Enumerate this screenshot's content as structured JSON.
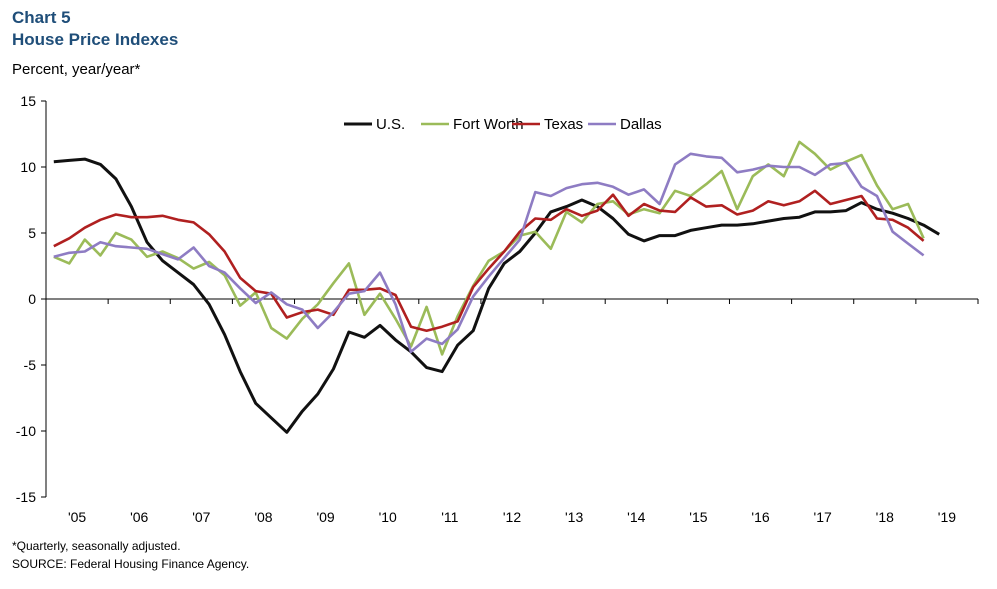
{
  "header": {
    "chart_number": "Chart 5",
    "title": "House Price Indexes",
    "y_unit": "Percent, year/year*"
  },
  "footer": {
    "note": "*Quarterly, seasonally adjusted.",
    "source": "SOURCE: Federal Housing Finance Agency."
  },
  "colors": {
    "title": "#1f4e79",
    "us": "#111111",
    "fort_worth": "#9bbb59",
    "texas": "#b02020",
    "dallas": "#8e7cc3"
  },
  "chart_data": {
    "type": "line",
    "title": "House Price Indexes",
    "ylabel": "Percent, year/year*",
    "xlabel": "",
    "ylim": [
      -15,
      15
    ],
    "yticks": [
      15,
      10,
      5,
      0,
      -5,
      -10,
      -15
    ],
    "year_labels": [
      "'05",
      "'06",
      "'07",
      "'08",
      "'09",
      "'10",
      "'11",
      "'12",
      "'13",
      "'14",
      "'15",
      "'16",
      "'17",
      "'18",
      "'19"
    ],
    "x_start": 2005.0,
    "x_step": 0.25,
    "grid": false,
    "legend_position": "top-center",
    "series": [
      {
        "name": "U.S.",
        "key": "us",
        "values": [
          10.4,
          10.5,
          10.6,
          10.2,
          9.1,
          7.0,
          4.3,
          2.9,
          2.0,
          1.1,
          -0.4,
          -2.7,
          -5.5,
          -7.9,
          -9.0,
          -10.1,
          -8.5,
          -7.2,
          -5.3,
          -2.5,
          -2.9,
          -2.0,
          -3.1,
          -4.0,
          -5.2,
          -5.5,
          -3.5,
          -2.4,
          0.8,
          2.7,
          3.6,
          5.0,
          6.6,
          7.0,
          7.5,
          7.0,
          6.1,
          4.9,
          4.4,
          4.8,
          4.8,
          5.2,
          5.4,
          5.6,
          5.6,
          5.7,
          5.9,
          6.1,
          6.2,
          6.6,
          6.6,
          6.7,
          7.3,
          6.8,
          6.5,
          6.1,
          5.6,
          4.9
        ]
      },
      {
        "name": "Fort Worth",
        "key": "fort_worth",
        "values": [
          3.2,
          2.7,
          4.5,
          3.3,
          5.0,
          4.5,
          3.2,
          3.6,
          3.1,
          2.3,
          2.8,
          1.8,
          -0.5,
          0.5,
          -2.2,
          -3.0,
          -1.5,
          -0.4,
          1.2,
          2.7,
          -1.2,
          0.4,
          -1.5,
          -3.6,
          -0.6,
          -4.2,
          -1.3,
          1.0,
          2.9,
          3.6,
          4.8,
          5.1,
          3.8,
          6.6,
          5.8,
          7.2,
          7.4,
          6.4,
          6.8,
          6.5,
          8.2,
          7.8,
          8.7,
          9.7,
          6.8,
          9.3,
          10.2,
          9.3,
          11.9,
          11.0,
          9.8,
          10.4,
          10.9,
          8.6,
          6.8,
          7.2,
          4.6
        ]
      },
      {
        "name": "Texas",
        "key": "texas",
        "values": [
          4.0,
          4.6,
          5.4,
          6.0,
          6.4,
          6.2,
          6.2,
          6.3,
          6.0,
          5.8,
          4.9,
          3.6,
          1.6,
          0.6,
          0.4,
          -1.4,
          -1.0,
          -0.8,
          -1.2,
          0.7,
          0.7,
          0.8,
          0.3,
          -2.1,
          -2.4,
          -2.1,
          -1.7,
          0.9,
          2.3,
          3.6,
          5.1,
          6.1,
          6.0,
          6.8,
          6.3,
          6.7,
          7.9,
          6.3,
          7.2,
          6.7,
          6.6,
          7.7,
          7.0,
          7.1,
          6.4,
          6.7,
          7.4,
          7.1,
          7.4,
          8.2,
          7.2,
          7.5,
          7.8,
          6.1,
          6.0,
          5.4,
          4.4
        ]
      },
      {
        "name": "Dallas",
        "key": "dallas",
        "values": [
          3.2,
          3.5,
          3.6,
          4.3,
          4.0,
          3.9,
          3.8,
          3.4,
          3.0,
          3.9,
          2.5,
          2.0,
          0.8,
          -0.3,
          0.5,
          -0.4,
          -0.8,
          -2.2,
          -1.0,
          0.4,
          0.6,
          2.0,
          -0.4,
          -4.0,
          -3.0,
          -3.4,
          -2.3,
          0.2,
          1.7,
          3.1,
          4.5,
          8.1,
          7.8,
          8.4,
          8.7,
          8.8,
          8.5,
          7.9,
          8.3,
          7.2,
          10.2,
          11.0,
          10.8,
          10.7,
          9.6,
          9.8,
          10.1,
          10.0,
          10.0,
          9.4,
          10.2,
          10.3,
          8.5,
          7.8,
          5.1,
          4.2,
          3.3
        ]
      }
    ]
  }
}
